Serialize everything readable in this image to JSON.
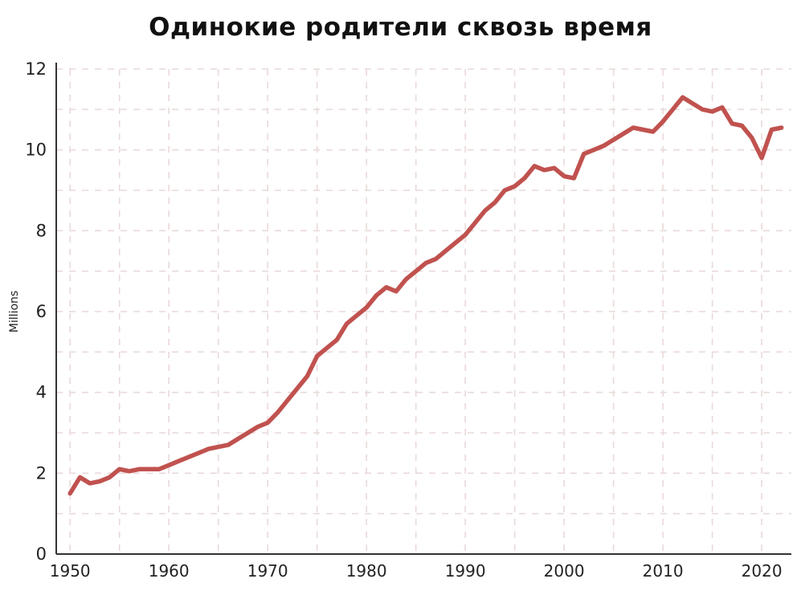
{
  "page": {
    "title": "Одинокие родители сквозь время"
  },
  "chart_data": {
    "type": "line",
    "title": "Одинокие родители сквозь время",
    "xlabel": "",
    "ylabel": "Millions",
    "ylim": [
      0,
      12
    ],
    "xlim": [
      1948.6,
      2023
    ],
    "yticks": [
      0,
      2,
      4,
      6,
      8,
      10,
      12
    ],
    "xticks": [
      1950,
      1960,
      1970,
      1980,
      1990,
      2000,
      2010,
      2020
    ],
    "ygrid_step": 1,
    "xgrid_step": 5,
    "grid": true,
    "legend_position": "none",
    "line_color": "#c0524f",
    "grid_color": "#ead9d9",
    "axis_color": "#333333",
    "x": [
      1950,
      1951,
      1952,
      1953,
      1954,
      1955,
      1956,
      1957,
      1958,
      1959,
      1960,
      1961,
      1962,
      1963,
      1964,
      1965,
      1966,
      1967,
      1968,
      1969,
      1970,
      1971,
      1972,
      1973,
      1974,
      1975,
      1976,
      1977,
      1978,
      1979,
      1980,
      1981,
      1982,
      1983,
      1984,
      1985,
      1986,
      1987,
      1988,
      1989,
      1990,
      1991,
      1992,
      1993,
      1994,
      1995,
      1996,
      1997,
      1998,
      1999,
      2000,
      2001,
      2002,
      2003,
      2004,
      2005,
      2006,
      2007,
      2008,
      2009,
      2010,
      2011,
      2012,
      2013,
      2014,
      2015,
      2016,
      2017,
      2018,
      2019,
      2020,
      2021,
      2022
    ],
    "values": [
      1.5,
      1.9,
      1.75,
      1.8,
      1.9,
      2.1,
      2.05,
      2.1,
      2.1,
      2.1,
      2.2,
      2.3,
      2.4,
      2.5,
      2.6,
      2.65,
      2.7,
      2.85,
      3.0,
      3.15,
      3.25,
      3.5,
      3.8,
      4.1,
      4.4,
      4.9,
      5.1,
      5.3,
      5.7,
      5.9,
      6.1,
      6.4,
      6.6,
      6.5,
      6.8,
      7.0,
      7.2,
      7.3,
      7.5,
      7.7,
      7.9,
      8.2,
      8.5,
      8.7,
      9.0,
      9.1,
      9.3,
      9.6,
      9.5,
      9.55,
      9.35,
      9.3,
      9.9,
      10.0,
      10.1,
      10.25,
      10.4,
      10.55,
      10.5,
      10.45,
      10.7,
      11.0,
      11.3,
      11.15,
      11.0,
      10.95,
      11.05,
      10.65,
      10.6,
      10.3,
      9.8,
      10.5,
      10.55
    ]
  }
}
